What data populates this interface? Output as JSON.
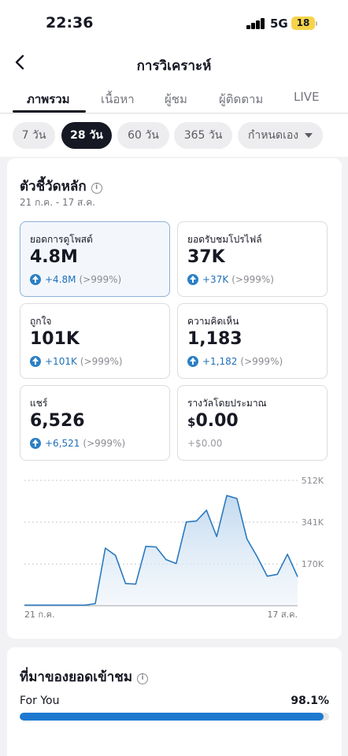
{
  "status": {
    "time": "22:36",
    "network": "5G",
    "battery": "18"
  },
  "header": {
    "title": "การวิเคราะห์"
  },
  "tabs": [
    "ภาพรวม",
    "เนื้อหา",
    "ผู้ชม",
    "ผู้ติดตาม",
    "LIVE"
  ],
  "active_tab": "ภาพรวม",
  "ranges": [
    "7 วัน",
    "28 วัน",
    "60 วัน",
    "365 วัน",
    "กำหนดเอง"
  ],
  "active_range": "28 วัน",
  "key_metrics": {
    "title": "ตัวชี้วัดหลัก",
    "date_range": "21 ก.ค. - 17 ส.ค.",
    "cards": [
      {
        "label": "ยอดการดูโพสต์",
        "value": "4.8M",
        "delta": "+4.8M",
        "pct": "(>999%)"
      },
      {
        "label": "ยอดรับชมโปรไฟล์",
        "value": "37K",
        "delta": "+37K",
        "pct": "(>999%)"
      },
      {
        "label": "ถูกใจ",
        "value": "101K",
        "delta": "+101K",
        "pct": "(>999%)"
      },
      {
        "label": "ความคิดเห็น",
        "value": "1,183",
        "delta": "+1,182",
        "pct": "(>999%)"
      },
      {
        "label": "แชร์",
        "value": "6,526",
        "delta": "+6,521",
        "pct": "(>999%)"
      },
      {
        "label": "รางวัลโดยประมาณ",
        "value_currency": "$",
        "value": "0.00",
        "delta": "+$0.00"
      }
    ]
  },
  "chart_data": {
    "type": "area",
    "x_labels": [
      "21 ก.ค.",
      "17 ส.ค."
    ],
    "y_ticks": [
      "512K",
      "341K",
      "170K"
    ],
    "y_tick_values": [
      512000,
      341000,
      170000
    ],
    "ylim": [
      0,
      512000
    ],
    "values": [
      2000,
      2000,
      2000,
      2000,
      2000,
      2000,
      2000,
      8000,
      235000,
      205000,
      90000,
      88000,
      242000,
      240000,
      188000,
      172000,
      342000,
      346000,
      390000,
      282000,
      450000,
      438000,
      272000,
      200000,
      120000,
      128000,
      210000,
      118000
    ],
    "color": "#2b79be"
  },
  "traffic_source": {
    "title": "ที่มาของยอดเข้าชม",
    "items": [
      {
        "label": "For You",
        "pct_text": "98.1%",
        "fraction": 0.981
      }
    ]
  }
}
